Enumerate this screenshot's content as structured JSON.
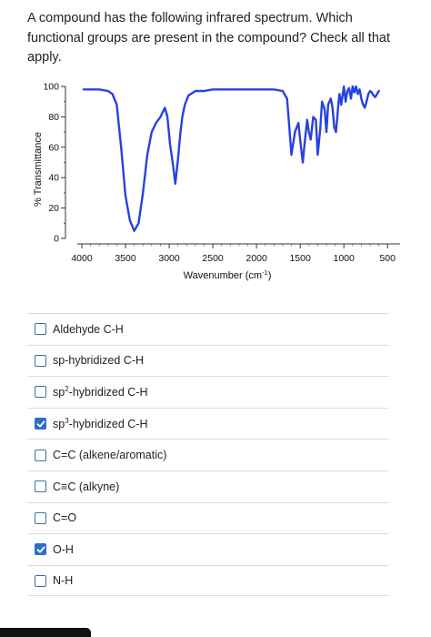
{
  "question": {
    "text": "A compound has the following infrared spectrum. Which functional groups are present in the compound? Check all that apply."
  },
  "chart_data": {
    "type": "line",
    "xlabel": "Wavenumber (cm⁻¹)",
    "ylabel": "% Transmittance",
    "xlim": [
      4000,
      450
    ],
    "ylim": [
      0,
      100
    ],
    "x_ticks": [
      "4000",
      "3500",
      "3000",
      "2500",
      "2000",
      "1500",
      "1000",
      "500"
    ],
    "y_ticks": [
      "100",
      "80",
      "60",
      "40",
      "20",
      "0"
    ],
    "series": [
      {
        "color": "#2742e0",
        "x": [
          3980,
          3900,
          3800,
          3700,
          3650,
          3600,
          3550,
          3500,
          3450,
          3400,
          3350,
          3300,
          3250,
          3200,
          3150,
          3100,
          3050,
          3020,
          2990,
          2960,
          2930,
          2900,
          2870,
          2850,
          2820,
          2780,
          2700,
          2600,
          2500,
          2400,
          2300,
          2200,
          2100,
          2000,
          1900,
          1800,
          1700,
          1650,
          1620,
          1600,
          1560,
          1520,
          1500,
          1470,
          1450,
          1420,
          1400,
          1380,
          1350,
          1320,
          1300,
          1270,
          1250,
          1220,
          1200,
          1180,
          1150,
          1130,
          1110,
          1090,
          1060,
          1050,
          1030,
          1000,
          980,
          960,
          940,
          920,
          900,
          880,
          860,
          840,
          820,
          800,
          780,
          760,
          740,
          720,
          700,
          680,
          660,
          640,
          620,
          600
        ],
        "y": [
          98,
          98,
          98,
          97,
          95,
          88,
          60,
          28,
          12,
          5,
          10,
          30,
          55,
          70,
          76,
          80,
          86,
          80,
          62,
          50,
          36,
          52,
          70,
          80,
          88,
          94,
          97,
          97,
          98,
          98,
          98,
          98,
          98,
          98,
          98,
          98,
          97,
          92,
          70,
          55,
          70,
          76,
          65,
          50,
          62,
          78,
          70,
          65,
          80,
          78,
          55,
          72,
          90,
          85,
          70,
          88,
          92,
          86,
          73,
          70,
          90,
          95,
          88,
          100,
          90,
          97,
          99,
          92,
          100,
          96,
          100,
          95,
          98,
          92,
          88,
          86,
          90,
          95,
          97,
          96,
          94,
          93,
          95,
          97
        ]
      }
    ],
    "grid": false
  },
  "options": [
    {
      "label": "Aldehyde C-H",
      "checked": false
    },
    {
      "label_before": "sp",
      "sup": "",
      "label_after": "sp-hybridized C-H",
      "label": "sp-hybridized C-H",
      "checked": false
    },
    {
      "label_before": "sp",
      "sup": "2",
      "label_after": "-hybridized C-H",
      "checked": false
    },
    {
      "label_before": "sp",
      "sup": "3",
      "label_after": "-hybridized C-H",
      "checked": true
    },
    {
      "label": "C=C (alkene/aromatic)",
      "checked": false
    },
    {
      "label": "C≡C (alkyne)",
      "checked": false
    },
    {
      "label": "C=O",
      "checked": false
    },
    {
      "label": "O-H",
      "checked": true
    },
    {
      "label": "N-H",
      "checked": false
    }
  ],
  "colors": {
    "accent": "#2c6fc9",
    "spectrum": "#2742e0"
  }
}
